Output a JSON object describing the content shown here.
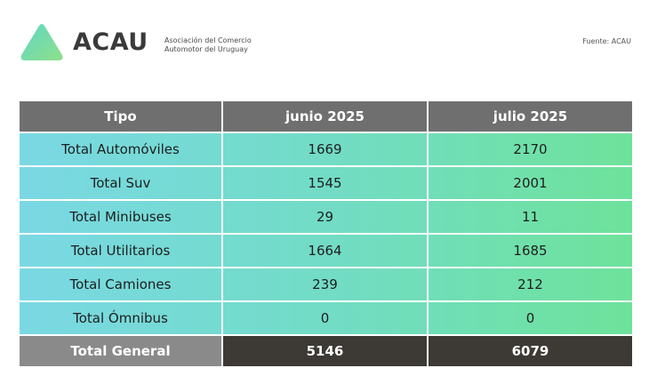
{
  "header": {
    "brand": "ACAU",
    "subtitle_line1": "Asociación del Comercio",
    "subtitle_line2": "Automotor del Uruguay",
    "source": "Fuente: ACAU"
  },
  "colors": {
    "logo_gradient_start": "#5fd6c4",
    "logo_gradient_end": "#8ee08a",
    "table_gradient_start": "#7ad8e4",
    "table_gradient_end": "#6ee29b",
    "header_row": "#6f6f6f",
    "total_label_bg": "#8a8a8a",
    "total_value_bg": "#3d3a36"
  },
  "table": {
    "columns": [
      "Tipo",
      "junio 2025",
      "julio 2025"
    ],
    "rows": [
      {
        "tipo": "Total Automóviles",
        "junio": "1669",
        "julio": "2170"
      },
      {
        "tipo": "Total Suv",
        "junio": "1545",
        "julio": "2001"
      },
      {
        "tipo": "Total Minibuses",
        "junio": "29",
        "julio": "11"
      },
      {
        "tipo": "Total Utilitarios",
        "junio": "1664",
        "julio": "1685"
      },
      {
        "tipo": "Total Camiones",
        "junio": "239",
        "julio": "212"
      },
      {
        "tipo": "Total Ómnibus",
        "junio": "0",
        "julio": "0"
      }
    ],
    "total": {
      "label": "Total General",
      "junio": "5146",
      "julio": "6079"
    }
  }
}
